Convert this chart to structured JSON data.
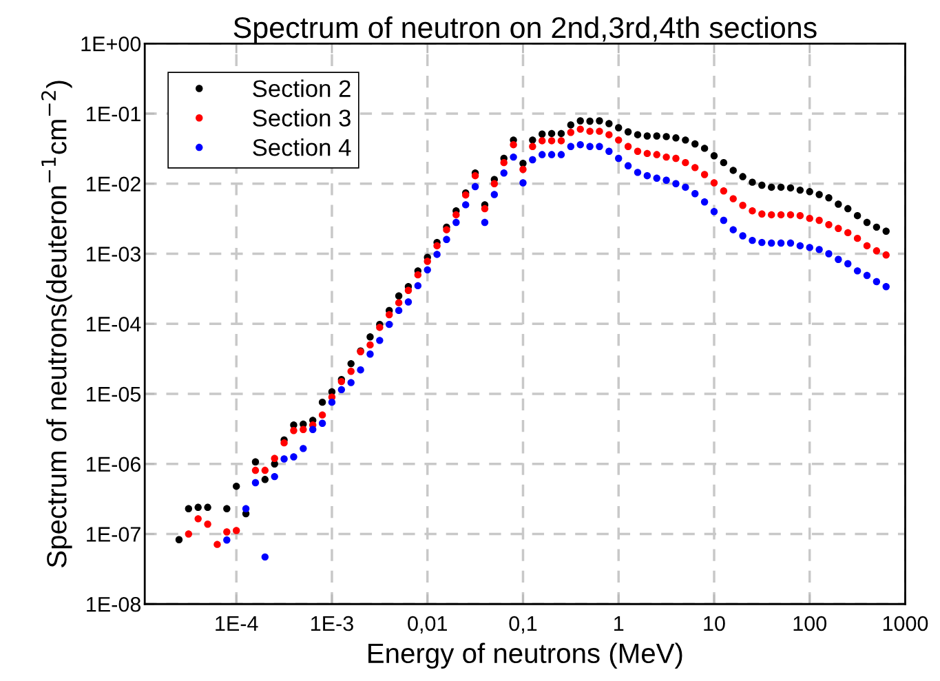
{
  "chart_data": {
    "type": "scatter",
    "title": "Spectrum of neutron on 2nd,3rd,4th sections",
    "xlabel": "Energy of neutrons (MeV)",
    "ylabel": "Spectrum of neutrons(deuteron$^{−1}$cm$^{−2}$)",
    "log": "xy",
    "grid": true,
    "legend": "top left",
    "marker": "circle",
    "xlim": [
      1.1e-05,
      1000
    ],
    "ylim": [
      1e-08,
      1
    ],
    "xticks": [
      {
        "value": 0.0001,
        "label": "1E-4"
      },
      {
        "value": 0.001,
        "label": "1E-3"
      },
      {
        "value": 0.01,
        "label": "0,01"
      },
      {
        "value": 0.1,
        "label": "0,1"
      },
      1,
      10,
      100,
      1000
    ],
    "yticks": [
      {
        "value": 1e-08,
        "label": "1E-08"
      },
      {
        "value": 1e-07,
        "label": "1E-07"
      },
      {
        "value": 1e-06,
        "label": "1E-06"
      },
      {
        "value": 1e-05,
        "label": "1E-05"
      },
      {
        "value": 0.0001,
        "label": "1E-04"
      },
      {
        "value": 0.001,
        "label": "1E-03"
      },
      {
        "value": 0.01,
        "label": "1E-02"
      },
      {
        "value": 0.1,
        "label": "1E-01"
      },
      {
        "value": 1,
        "label": "1E+00"
      }
    ],
    "x": [
      2.512e-05,
      3.162e-05,
      3.981e-05,
      5.012e-05,
      6.31e-05,
      7.943e-05,
      0.0001,
      0.0001259,
      0.0001585,
      0.0001995,
      0.0002512,
      0.0003162,
      0.0003981,
      0.0005012,
      0.000631,
      0.0007943,
      0.001,
      0.001259,
      0.001585,
      0.001995,
      0.002512,
      0.003162,
      0.003981,
      0.005012,
      0.00631,
      0.007943,
      0.01,
      0.01259,
      0.01585,
      0.01995,
      0.02512,
      0.03162,
      0.03981,
      0.05012,
      0.0631,
      0.07943,
      0.1,
      0.1259,
      0.1585,
      0.1995,
      0.2512,
      0.3162,
      0.3981,
      0.5012,
      0.631,
      0.7943,
      1,
      1.259,
      1.585,
      1.995,
      2.512,
      3.162,
      3.981,
      5.012,
      6.31,
      7.943,
      10,
      12.59,
      15.85,
      19.95,
      25.12,
      31.62,
      39.81,
      50.12,
      63.1,
      79.43,
      100,
      125.9,
      158.5,
      199.5,
      251.2,
      316.2,
      398.1,
      501.2,
      631
    ],
    "series": [
      {
        "name": "Section 2",
        "color": "#000000",
        "values": [
          8.3e-08,
          2.3e-07,
          2.4e-07,
          2.4e-07,
          null,
          2.3e-07,
          4.8e-07,
          1.95e-07,
          1.07e-06,
          6e-07,
          1e-06,
          2.2e-06,
          3.6e-06,
          3.7e-06,
          4.2e-06,
          7.6e-06,
          1.07e-05,
          1.6e-05,
          2.7e-05,
          4.1e-05,
          6.5e-05,
          9.8e-05,
          0.000155,
          0.00025,
          0.00034,
          0.00057,
          0.00089,
          0.00145,
          0.0024,
          0.0041,
          0.0074,
          0.0142,
          0.005,
          0.0115,
          0.023,
          0.042,
          0.0195,
          0.042,
          0.051,
          0.052,
          0.052,
          0.069,
          0.079,
          0.078,
          0.079,
          0.072,
          0.063,
          0.055,
          0.05,
          0.048,
          0.048,
          0.047,
          0.045,
          0.042,
          0.037,
          0.032,
          0.025,
          0.02,
          0.0155,
          0.0126,
          0.0105,
          0.0095,
          0.0089,
          0.0089,
          0.0087,
          0.0081,
          0.0077,
          0.007,
          0.0063,
          0.0051,
          0.0044,
          0.0035,
          0.0028,
          0.0024,
          0.0021
        ]
      },
      {
        "name": "Section 3",
        "color": "#ff0000",
        "values": [
          null,
          1e-07,
          1.65e-07,
          1.38e-07,
          7.1e-08,
          1.07e-07,
          1.12e-07,
          null,
          8.1e-07,
          8.1e-07,
          1.2e-06,
          2e-06,
          3e-06,
          3.1e-06,
          3.6e-06,
          5e-06,
          9e-06,
          1.5e-05,
          2.1e-05,
          4e-05,
          5e-05,
          8.9e-05,
          0.000135,
          0.0002,
          0.0003,
          0.0005,
          0.00078,
          0.0013,
          0.0022,
          0.0036,
          0.0069,
          0.013,
          0.0044,
          0.01,
          0.02,
          0.036,
          0.016,
          0.034,
          0.041,
          0.041,
          0.041,
          0.054,
          0.06,
          0.056,
          0.056,
          0.05,
          0.042,
          0.034,
          0.029,
          0.027,
          0.026,
          0.024,
          0.023,
          0.02,
          0.017,
          0.0135,
          0.0103,
          0.0079,
          0.0061,
          0.0049,
          0.0041,
          0.0037,
          0.0036,
          0.0036,
          0.0036,
          0.0035,
          0.0032,
          0.003,
          0.0026,
          0.0023,
          0.002,
          0.00166,
          0.0013,
          0.0011,
          0.00096
        ]
      },
      {
        "name": "Section 4",
        "color": "#0000ff",
        "values": [
          null,
          null,
          null,
          null,
          null,
          8.2e-08,
          null,
          2.3e-07,
          5.4e-07,
          4.7e-08,
          6.6e-07,
          1.18e-06,
          1.26e-06,
          1.66e-06,
          3.1e-06,
          3.8e-06,
          7.6e-06,
          1.15e-05,
          1.45e-05,
          2.2e-05,
          3.7e-05,
          5.8e-05,
          9.8e-05,
          0.000155,
          0.000205,
          0.00035,
          0.00059,
          0.00098,
          0.0016,
          0.0028,
          0.005,
          0.0091,
          0.0028,
          0.007,
          0.0142,
          0.024,
          0.0103,
          0.022,
          0.026,
          0.026,
          0.026,
          0.034,
          0.036,
          0.034,
          0.034,
          0.029,
          0.023,
          0.018,
          0.0145,
          0.013,
          0.012,
          0.0112,
          0.01,
          0.0089,
          0.0072,
          0.0055,
          0.004,
          0.003,
          0.0022,
          0.0018,
          0.00155,
          0.00145,
          0.00142,
          0.00142,
          0.00142,
          0.0013,
          0.00123,
          0.00115,
          0.001,
          0.00083,
          0.00072,
          0.00057,
          0.00049,
          0.0004,
          0.00034
        ]
      }
    ]
  }
}
